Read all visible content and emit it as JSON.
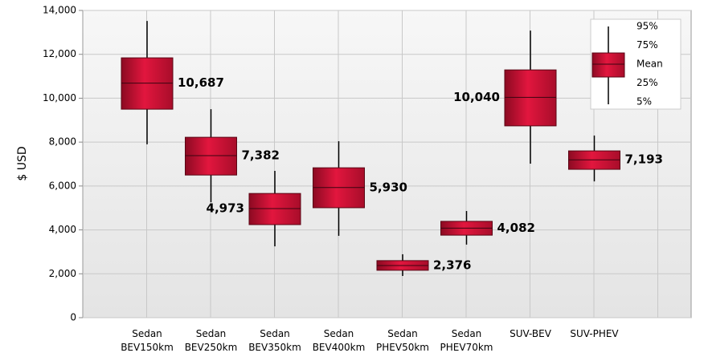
{
  "chart_data": {
    "type": "box",
    "y_label": "$ USD",
    "categories": [
      [
        "Sedan",
        "BEV150km"
      ],
      [
        "Sedan",
        "BEV250km"
      ],
      [
        "Sedan",
        "BEV350km"
      ],
      [
        "Sedan",
        "BEV400km"
      ],
      [
        "Sedan",
        "PHEV50km"
      ],
      [
        "Sedan",
        "PHEV70km"
      ],
      [
        "SUV-BEV"
      ],
      [
        "SUV-PHEV"
      ]
    ],
    "p95": [
      13520,
      9500,
      6690,
      8040,
      2890,
      4860,
      13080,
      8300
    ],
    "p75": [
      11840,
      8220,
      5660,
      6830,
      2600,
      4390,
      11290,
      7600
    ],
    "mean": [
      10687,
      7382,
      4973,
      5930,
      2376,
      4082,
      10040,
      7193
    ],
    "value_labels": [
      "10,687",
      "7,382",
      "4,973",
      "5,930",
      "2,376",
      "4,082",
      "10,040",
      "7,193"
    ],
    "p25": [
      9500,
      6500,
      4240,
      5010,
      2160,
      3760,
      8740,
      6760
    ],
    "p05": [
      7900,
      5260,
      3250,
      3730,
      1900,
      3330,
      7020,
      6210
    ],
    "legend": [
      "95%",
      "75%",
      "Mean",
      "25%",
      "5%"
    ],
    "color": "#d41237",
    "ylim": [
      0,
      14000
    ],
    "yticks": [
      0,
      {
        "value": 2000,
        "label": "2,000"
      },
      {
        "value": 4000,
        "label": "4,000"
      },
      {
        "value": 6000,
        "label": "6,000"
      },
      {
        "value": 8000,
        "label": "8,000"
      },
      {
        "value": 10000,
        "label": "10,000"
      },
      {
        "value": 12000,
        "label": "12,000"
      },
      {
        "value": 14000,
        "label": "14,000"
      }
    ],
    "grid": true
  }
}
